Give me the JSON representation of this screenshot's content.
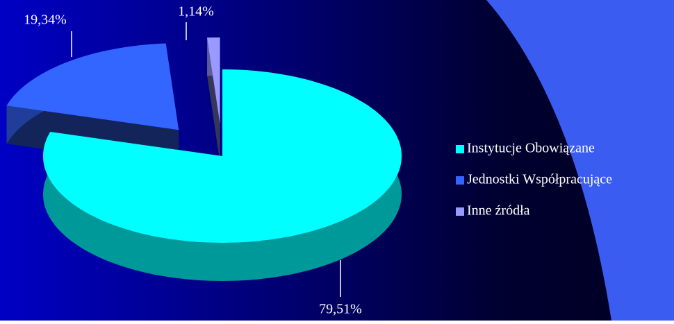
{
  "chart_data": {
    "type": "pie",
    "categories": [
      "Instytucje Obowiązane",
      "Jednostki Współpracujące",
      "Inne źródła"
    ],
    "values": [
      79.51,
      19.34,
      1.14
    ],
    "value_labels": [
      "79,51%",
      "19,34%",
      "1,14%"
    ],
    "colors": [
      "#00ffff",
      "#3366ff",
      "#9999ff"
    ],
    "legend": "right"
  }
}
